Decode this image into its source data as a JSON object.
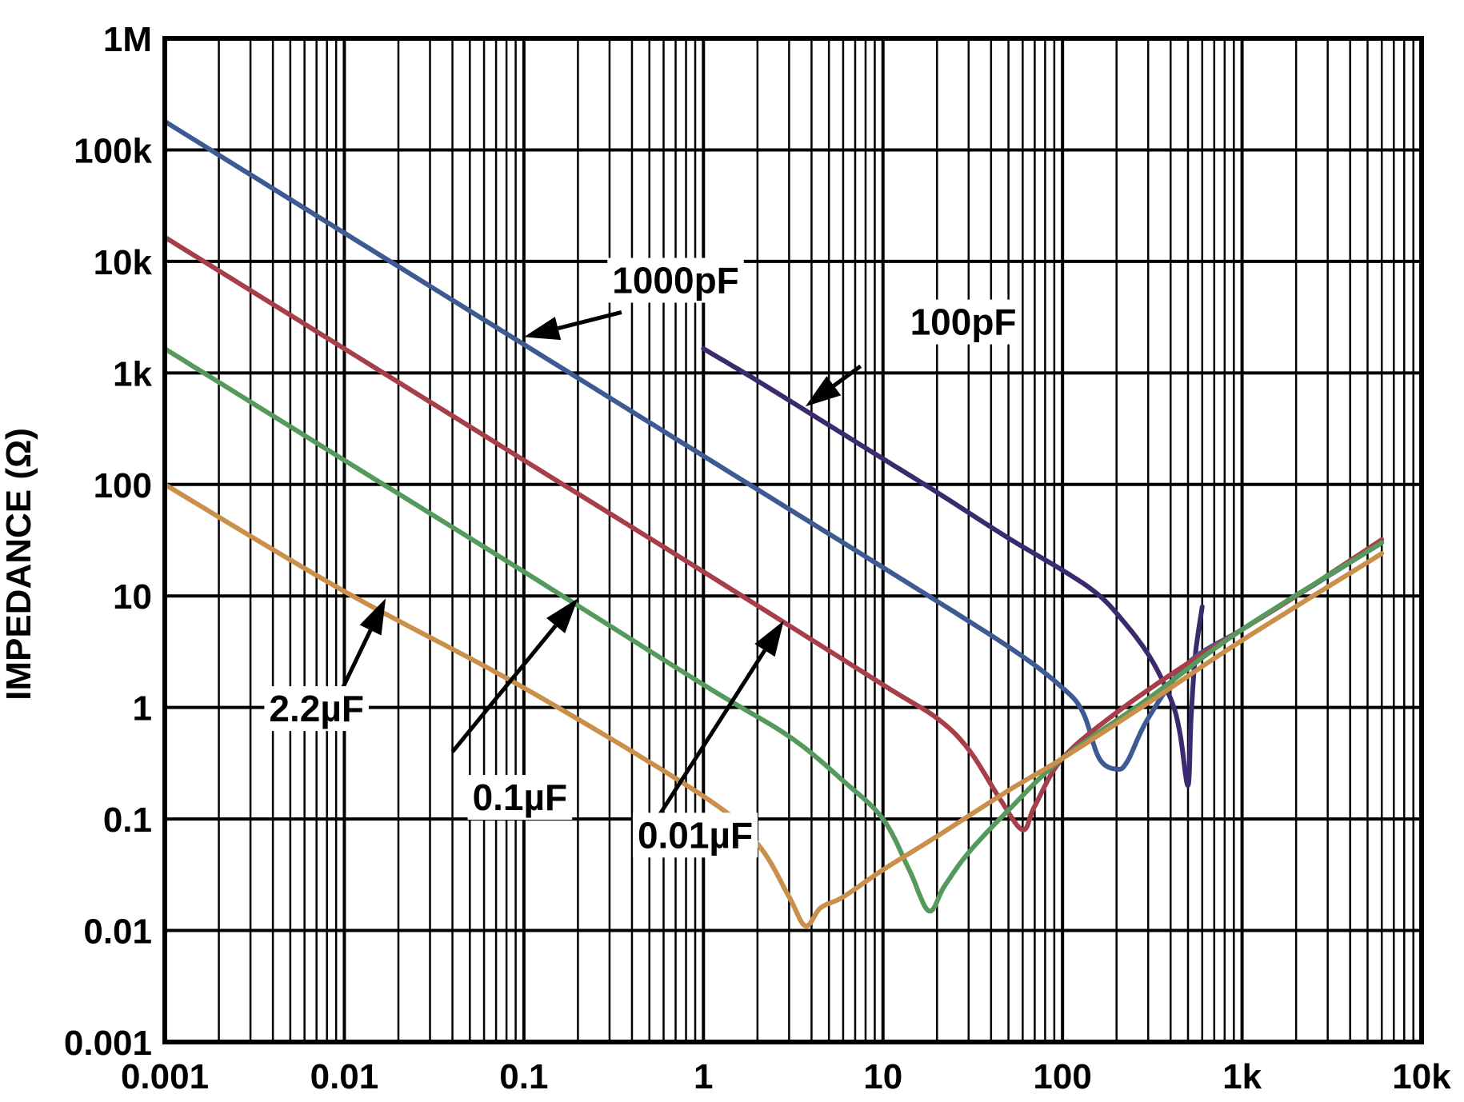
{
  "chart_data": {
    "type": "line",
    "xscale": "log",
    "yscale": "log",
    "xlim": [
      0.001,
      10000
    ],
    "ylim": [
      0.001,
      1000000
    ],
    "grid": true,
    "ylabel": "IMPEDANCE (Ω)",
    "xlabel": "",
    "xticks": [
      {
        "value": 0.001,
        "label": "0.001"
      },
      {
        "value": 0.01,
        "label": "0.01"
      },
      {
        "value": 0.1,
        "label": "0.1"
      },
      {
        "value": 1,
        "label": "1"
      },
      {
        "value": 10,
        "label": "10"
      },
      {
        "value": 100,
        "label": "100"
      },
      {
        "value": 1000,
        "label": "1k"
      },
      {
        "value": 10000,
        "label": "10k"
      }
    ],
    "yticks": [
      {
        "value": 0.001,
        "label": "0.001"
      },
      {
        "value": 0.01,
        "label": "0.01"
      },
      {
        "value": 0.1,
        "label": "0.1"
      },
      {
        "value": 1,
        "label": "1"
      },
      {
        "value": 10,
        "label": "10"
      },
      {
        "value": 100,
        "label": "100"
      },
      {
        "value": 1000,
        "label": "1k"
      },
      {
        "value": 10000,
        "label": "10k"
      },
      {
        "value": 100000,
        "label": "100k"
      },
      {
        "value": 1000000,
        "label": "1M"
      }
    ],
    "series": [
      {
        "name": "100pF",
        "color": "#3b2a6e",
        "x": [
          1,
          2,
          5,
          10,
          20,
          50,
          100,
          150,
          200,
          300,
          400,
          450,
          500,
          520,
          550,
          600
        ],
        "y": [
          1650,
          850,
          340,
          170,
          85,
          33,
          17,
          11,
          7,
          3,
          1.2,
          0.6,
          0.2,
          0.8,
          3,
          8
        ]
      },
      {
        "name": "1000pF",
        "color": "#3e5a93",
        "x": [
          0.001,
          0.01,
          0.1,
          1,
          10,
          50,
          100,
          130,
          160,
          200,
          230,
          300,
          500,
          1000,
          2000,
          6000
        ],
        "y": [
          180000,
          18000,
          1800,
          180,
          18,
          3.5,
          1.5,
          0.9,
          0.35,
          0.28,
          0.33,
          0.8,
          2.5,
          5,
          10,
          30
        ]
      },
      {
        "name": "0.01µF",
        "color": "#a63f4a",
        "x": [
          0.001,
          0.01,
          0.1,
          1,
          10,
          20,
          30,
          45,
          60,
          70,
          100,
          200,
          500,
          1000,
          2000,
          6000
        ],
        "y": [
          16500,
          1650,
          165,
          16.5,
          1.6,
          0.8,
          0.42,
          0.15,
          0.08,
          0.13,
          0.35,
          0.9,
          2.5,
          5,
          10,
          32
        ]
      },
      {
        "name": "0.1µF",
        "color": "#559a5c",
        "x": [
          0.001,
          0.01,
          0.1,
          1,
          3,
          6,
          10,
          14,
          18,
          22,
          30,
          50,
          100,
          300,
          1000,
          6000
        ],
        "y": [
          1650,
          165,
          16.5,
          1.6,
          0.55,
          0.22,
          0.1,
          0.035,
          0.015,
          0.025,
          0.05,
          0.12,
          0.35,
          1.2,
          5,
          30
        ]
      },
      {
        "name": "2.2µF",
        "color": "#c98f4b",
        "x": [
          0.001,
          0.01,
          0.1,
          1,
          2,
          3,
          3.7,
          4.5,
          6,
          10,
          20,
          50,
          100,
          300,
          1000,
          6000
        ],
        "y": [
          100,
          11,
          1.5,
          0.16,
          0.06,
          0.02,
          0.011,
          0.016,
          0.02,
          0.035,
          0.07,
          0.18,
          0.35,
          1.1,
          4,
          24
        ]
      }
    ],
    "annotations": [
      {
        "text": "1000pF",
        "text_at": [
          0.7,
          5200
        ],
        "text_anchor": "middle",
        "arrow_from": [
          0.35,
          3500
        ],
        "arrow_to": [
          0.1,
          2100
        ]
      },
      {
        "text": "100pF",
        "text_at": [
          28,
          2200
        ],
        "text_anchor": "middle",
        "arrow_from": [
          7.5,
          1150
        ],
        "arrow_to": [
          3.7,
          500
        ]
      },
      {
        "text": "2.2µF",
        "text_at": [
          0.007,
          0.75
        ],
        "text_anchor": "middle",
        "arrow_from": [
          0.0095,
          1.35
        ],
        "arrow_to": [
          0.017,
          9.5
        ]
      },
      {
        "text": "0.1µF",
        "text_at": [
          0.095,
          0.12
        ],
        "text_anchor": "middle",
        "arrow_from": [
          0.04,
          0.4
        ],
        "arrow_to": [
          0.2,
          9.5
        ]
      },
      {
        "text": "0.01µF",
        "text_at": [
          0.9,
          0.055
        ],
        "text_anchor": "middle",
        "arrow_from": [
          0.55,
          0.1
        ],
        "arrow_to": [
          2.8,
          6
        ]
      }
    ]
  }
}
